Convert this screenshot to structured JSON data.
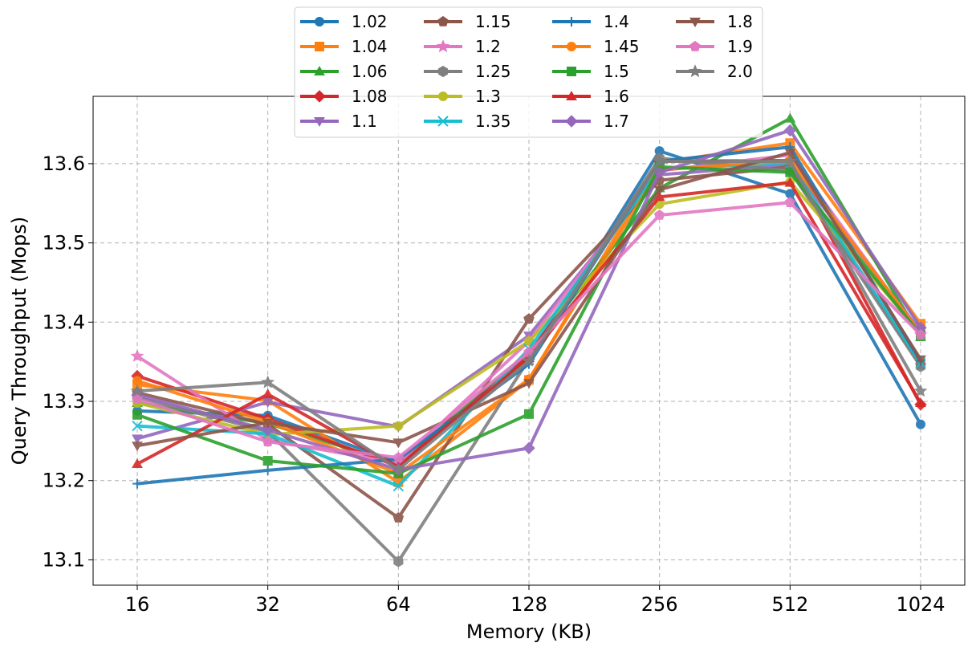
{
  "chart_data": {
    "type": "line",
    "title": "",
    "xlabel": "Memory (KB)",
    "ylabel": "Query Throughput (Mops)",
    "categories": [
      "16",
      "32",
      "64",
      "128",
      "256",
      "512",
      "1024"
    ],
    "yticks": [
      "13.1",
      "13.2",
      "13.3",
      "13.4",
      "13.5",
      "13.6"
    ],
    "ylim": [
      13.068,
      13.685
    ],
    "grid": true,
    "legend_placement": "top-center",
    "series": [
      {
        "name": "1.02",
        "color": "#1f77b4",
        "marker": "circle",
        "values": [
          13.288,
          13.282,
          13.223,
          13.353,
          13.616,
          13.562,
          13.271
        ]
      },
      {
        "name": "1.04",
        "color": "#ff7f0e",
        "marker": "square",
        "values": [
          13.321,
          13.301,
          13.198,
          13.327,
          13.601,
          13.626,
          13.398
        ]
      },
      {
        "name": "1.06",
        "color": "#2ca02c",
        "marker": "triangle-up",
        "values": [
          13.298,
          13.272,
          13.221,
          13.361,
          13.569,
          13.657,
          13.381
        ]
      },
      {
        "name": "1.08",
        "color": "#d62728",
        "marker": "diamond",
        "values": [
          13.332,
          13.278,
          13.218,
          13.358,
          13.603,
          13.604,
          13.296
        ]
      },
      {
        "name": "1.1",
        "color": "#9467bd",
        "marker": "triangle-down",
        "values": [
          13.253,
          13.299,
          13.268,
          13.383,
          13.586,
          13.599,
          13.388
        ]
      },
      {
        "name": "1.15",
        "color": "#8c564b",
        "marker": "pentagon",
        "values": [
          13.311,
          13.271,
          13.153,
          13.404,
          13.579,
          13.596,
          13.346
        ]
      },
      {
        "name": "1.2",
        "color": "#e377c2",
        "marker": "star",
        "values": [
          13.357,
          13.251,
          13.222,
          13.376,
          13.591,
          13.611,
          13.384
        ]
      },
      {
        "name": "1.25",
        "color": "#7f7f7f",
        "marker": "hexagon",
        "values": [
          13.305,
          13.262,
          13.098,
          13.353,
          13.607,
          13.591,
          13.344
        ]
      },
      {
        "name": "1.3",
        "color": "#bcbd22",
        "marker": "circle",
        "values": [
          13.298,
          13.258,
          13.269,
          13.376,
          13.549,
          13.577,
          13.386
        ]
      },
      {
        "name": "1.35",
        "color": "#17becf",
        "marker": "x",
        "values": [
          13.269,
          13.259,
          13.193,
          13.366,
          13.593,
          13.601,
          13.348
        ]
      },
      {
        "name": "1.4",
        "color": "#1f77b4",
        "marker": "plus",
        "values": [
          13.196,
          13.213,
          13.227,
          13.347,
          13.603,
          13.621,
          13.351
        ]
      },
      {
        "name": "1.45",
        "color": "#ff7f0e",
        "marker": "circle",
        "values": [
          13.326,
          13.274,
          13.209,
          13.328,
          13.592,
          13.604,
          13.386
        ]
      },
      {
        "name": "1.5",
        "color": "#2ca02c",
        "marker": "square",
        "values": [
          13.283,
          13.225,
          13.209,
          13.284,
          13.596,
          13.589,
          13.384
        ]
      },
      {
        "name": "1.6",
        "color": "#d62728",
        "marker": "triangle-up",
        "values": [
          13.221,
          13.309,
          13.217,
          13.355,
          13.558,
          13.576,
          13.298
        ]
      },
      {
        "name": "1.7",
        "color": "#9467bd",
        "marker": "diamond",
        "values": [
          13.308,
          13.264,
          13.214,
          13.241,
          13.589,
          13.642,
          13.393
        ]
      },
      {
        "name": "1.8",
        "color": "#8c564b",
        "marker": "triangle-down",
        "values": [
          13.244,
          13.273,
          13.248,
          13.323,
          13.567,
          13.614,
          13.353
        ]
      },
      {
        "name": "1.9",
        "color": "#e377c2",
        "marker": "pentagon",
        "values": [
          13.303,
          13.249,
          13.229,
          13.362,
          13.535,
          13.551,
          13.384
        ]
      },
      {
        "name": "2.0",
        "color": "#7f7f7f",
        "marker": "star",
        "values": [
          13.313,
          13.324,
          13.214,
          13.351,
          13.603,
          13.603,
          13.313
        ]
      }
    ]
  }
}
